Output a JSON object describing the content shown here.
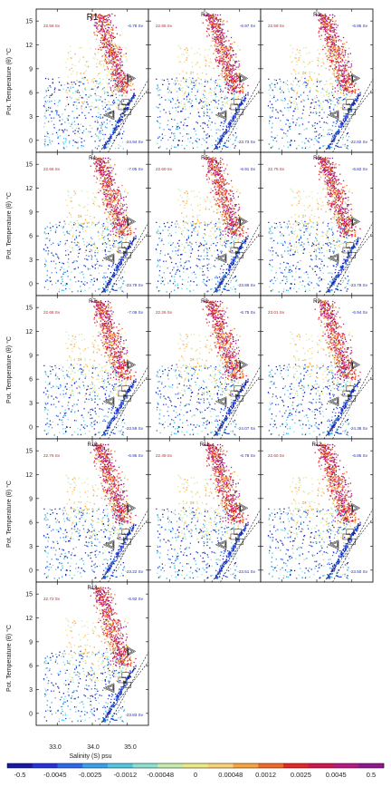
{
  "chart_data": {
    "type": "scatter",
    "xlabel": "Salinity (S) psu",
    "ylabel": "Pot. Temperature (θ) °C",
    "x_ticks": [
      "33.0",
      "34.0",
      "35.0"
    ],
    "y_ticks": [
      "0",
      "3",
      "6",
      "9",
      "12",
      "15"
    ],
    "xlim": [
      32.4,
      35.6
    ],
    "ylim": [
      -1.5,
      16.5
    ],
    "colorbar": {
      "labels": [
        "-0.5",
        "-0.0045",
        "-0.0025",
        "-0.0012",
        "-0.00048",
        "0",
        "0.00048",
        "0.0012",
        "0.0025",
        "0.0045",
        "0.5"
      ],
      "colors": [
        "#1a1aa0",
        "#2433d6",
        "#2e6ae6",
        "#3aa0e8",
        "#55c6e0",
        "#8fe0d0",
        "#c6ecb0",
        "#eaea88",
        "#f7d27a",
        "#f5a640",
        "#ee6a2c",
        "#e02828",
        "#cc1a50",
        "#b41a80",
        "#8c1a8c"
      ]
    },
    "panels": [
      {
        "title": "R1",
        "pos": "22.58 Sv",
        "neg": "-6.78 Sv",
        "neg2": "-24.94 Sv"
      },
      {
        "title": "R2",
        "pos": "22.65 Sv",
        "neg": "-6.97 Sv",
        "neg2": "-23.73 Sv"
      },
      {
        "title": "R3",
        "pos": "22.59 Sv",
        "neg": "-6.85 Sv",
        "neg2": "-22.82 Sv"
      },
      {
        "title": "R4",
        "pos": "22.66 Sv",
        "neg": "-7.05 Sv",
        "neg2": "-23.79 Sv"
      },
      {
        "title": "R5",
        "pos": "22.60 Sv",
        "neg": "-6.91 Sv",
        "neg2": "-23.86 Sv"
      },
      {
        "title": "R6",
        "pos": "22.75 Sv",
        "neg": "-6.82 Sv",
        "neg2": "-23.78 Sv"
      },
      {
        "title": "R7",
        "pos": "22.68 Sv",
        "neg": "-7.06 Sv",
        "neg2": "-23.59 Sv"
      },
      {
        "title": "R8",
        "pos": "22.26 Sv",
        "neg": "-6.75 Sv",
        "neg2": "-24.07 Sv"
      },
      {
        "title": "R9",
        "pos": "23.01 Sv",
        "neg": "-6.94 Sv",
        "neg2": "-24.38 Sv"
      },
      {
        "title": "R10",
        "pos": "22.76 Sv",
        "neg": "-6.95 Sv",
        "neg2": "-23.22 Sv"
      },
      {
        "title": "R11",
        "pos": "22.49 Sv",
        "neg": "-6.78 Sv",
        "neg2": "-23.51 Sv"
      },
      {
        "title": "R12",
        "pos": "22.60 Sv",
        "neg": "-6.85 Sv",
        "neg2": "-23.50 Sv"
      },
      {
        "title": "R13",
        "pos": "22.72 Sv",
        "neg": "-6.92 Sv",
        "neg2": "-23.83 Sv"
      }
    ]
  }
}
